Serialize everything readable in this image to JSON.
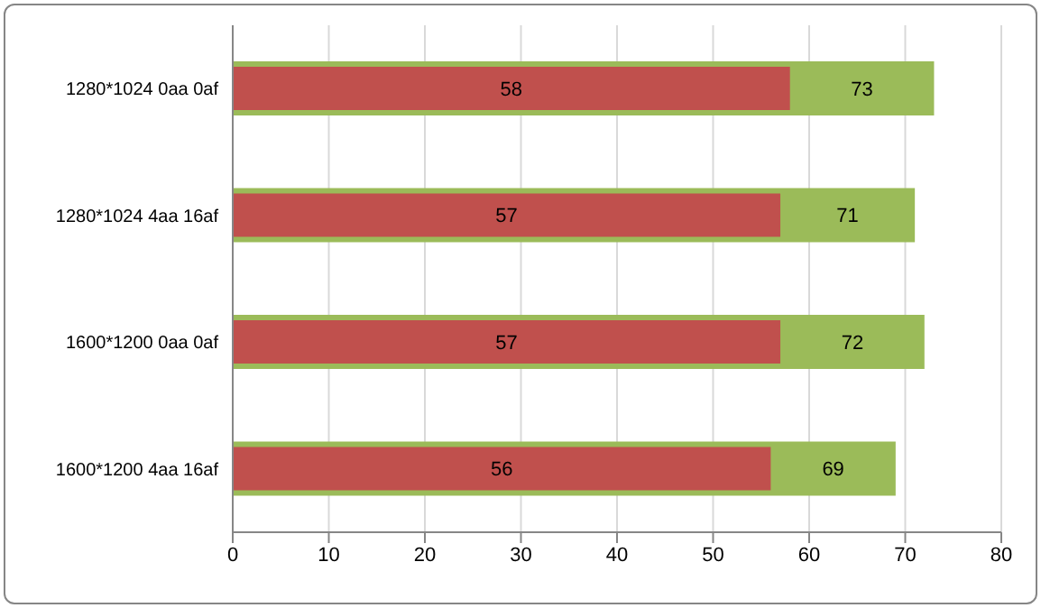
{
  "chart_data": {
    "type": "bar",
    "orientation": "horizontal",
    "categories": [
      "1280*1024 0aa 0af",
      "1280*1024 4aa 16af",
      "1600*1200 0aa 0af",
      "1600*1200 4aa 16af"
    ],
    "series": [
      {
        "color": "#c0504d",
        "values": [
          58,
          57,
          57,
          56
        ]
      },
      {
        "color": "#9bbb59",
        "values": [
          73,
          71,
          72,
          69
        ]
      }
    ],
    "xlim": [
      0,
      80
    ],
    "xticks": [
      0,
      10,
      20,
      30,
      40,
      50,
      60,
      70,
      80
    ],
    "grid": "x",
    "data_labels": true,
    "legend": false
  }
}
